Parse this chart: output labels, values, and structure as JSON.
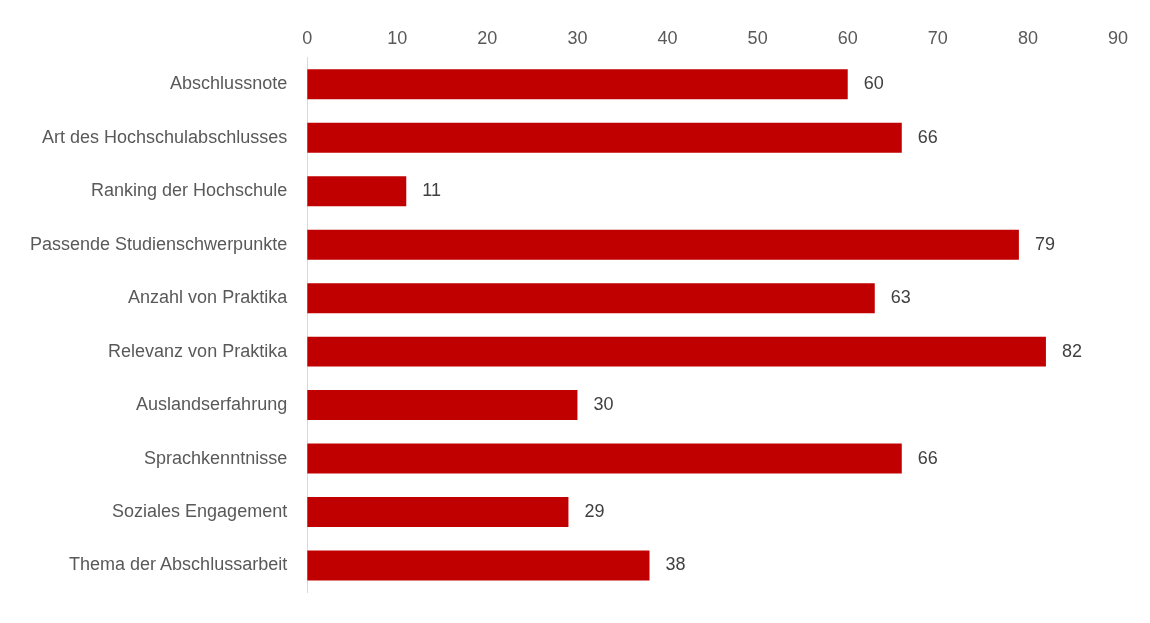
{
  "chart_data": {
    "type": "bar",
    "orientation": "horizontal",
    "categories": [
      "Abschlussnote",
      "Art des Hochschulabschlusses",
      "Ranking der Hochschule",
      "Passende Studienschwerpunkte",
      "Anzahl von Praktika",
      "Relevanz von Praktika",
      "Auslandserfahrung",
      "Sprachkenntnisse",
      "Soziales Engagement",
      "Thema der Abschlussarbeit"
    ],
    "values": [
      60,
      66,
      11,
      79,
      63,
      82,
      30,
      66,
      29,
      38
    ],
    "color": "#c00000",
    "xlim": [
      0,
      90
    ],
    "xticks": [
      0,
      10,
      20,
      30,
      40,
      50,
      60,
      70,
      80,
      90
    ],
    "grid": false,
    "legend": false,
    "data_labels": true
  }
}
